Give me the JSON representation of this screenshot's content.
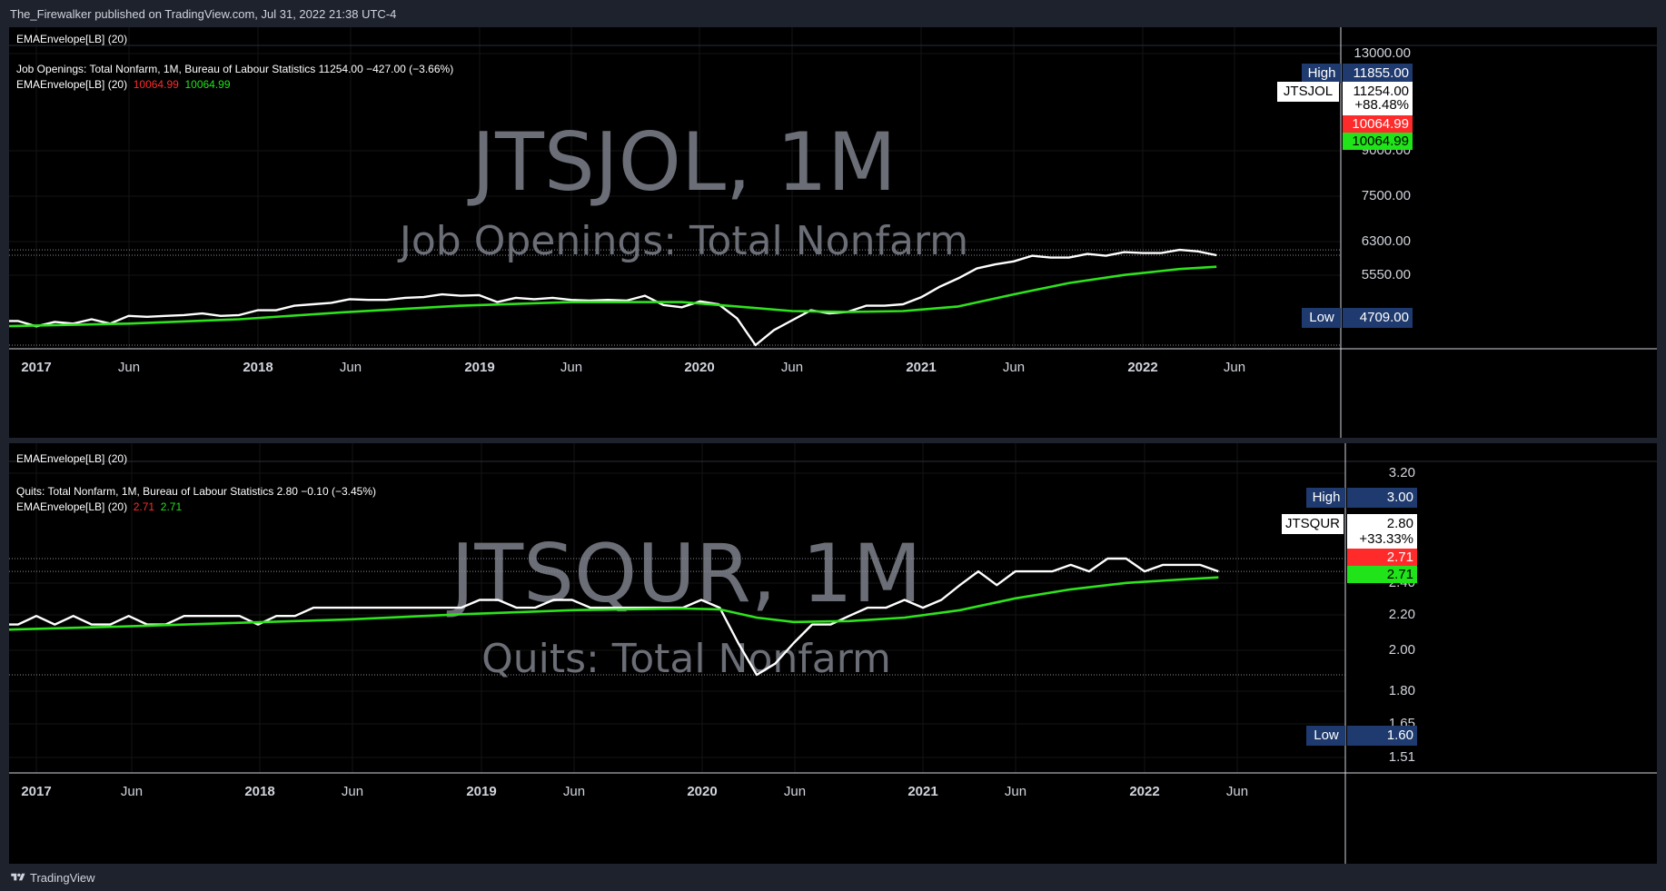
{
  "header": {
    "publish_text": "The_Firewalker published on TradingView.com, Jul 31, 2022 21:38 UTC-4"
  },
  "footer": {
    "brand": "TradingView"
  },
  "colors": {
    "price": "#ffffff",
    "ema": "#2ee21c",
    "upper": "#ff2b2b",
    "lower": "#21e319",
    "tag_bg": "#1e3a6e",
    "watermark": "#6b6e76",
    "grid": "#1a1a1a"
  },
  "panels": [
    {
      "indicator_title": "EMAEnvelope[LB] (20)",
      "series_line": "Job Openings: Total Nonfarm, 1M, Bureau of Labour Statistics  11254.00  −427.00 (−3.66%)",
      "ema_label": "EMAEnvelope[LB] (20)",
      "ema_upper_value": "10064.99",
      "ema_lower_value": "10064.99",
      "watermark_symbol": "JTSJOL, 1M",
      "watermark_name": "Job Openings: Total Nonfarm",
      "symbol_tag": "JTSJOL",
      "last_value": "11254.00",
      "last_change": "+88.48%",
      "upper_tag": "10064.99",
      "lower_tag": "10064.99",
      "high_label": "High",
      "high_value": "11855.00",
      "low_label": "Low",
      "low_value": "4709.00",
      "y_ticks": [
        "13000.00",
        "7500.00",
        "6300.00",
        "5550.00"
      ],
      "hidden_tick": "9000.00",
      "x_ticks": [
        "2017",
        "Jun",
        "2018",
        "Jun",
        "2019",
        "Jun",
        "2020",
        "Jun",
        "2021",
        "Jun",
        "2022",
        "Jun"
      ]
    },
    {
      "indicator_title": "EMAEnvelope[LB] (20)",
      "series_line": "Quits: Total Nonfarm, 1M, Bureau of Labour Statistics  2.80  −0.10 (−3.45%)",
      "ema_label": "EMAEnvelope[LB] (20)",
      "ema_upper_value": "2.71",
      "ema_lower_value": "2.71",
      "watermark_symbol": "JTSQUR, 1M",
      "watermark_name": "Quits: Total Nonfarm",
      "symbol_tag": "JTSQUR",
      "last_value": "2.80",
      "last_change": "+33.33%",
      "upper_tag": "2.71",
      "lower_tag": "2.71",
      "high_label": "High",
      "high_value": "3.00",
      "low_label": "Low",
      "low_value": "1.60",
      "y_ticks": [
        "3.20",
        "2.20",
        "2.00",
        "1.80",
        "1.65",
        "1.51"
      ],
      "hidden_tick": "2.40",
      "x_ticks": [
        "2017",
        "Jun",
        "2018",
        "Jun",
        "2019",
        "Jun",
        "2020",
        "Jun",
        "2021",
        "Jun",
        "2022",
        "Jun"
      ]
    }
  ],
  "chart_data": [
    {
      "type": "line",
      "title": "Job Openings: Total Nonfarm",
      "y_scale": "log",
      "ylim": [
        4400,
        13000
      ],
      "x_range": [
        "2016-11",
        "2022-12"
      ],
      "series": [
        {
          "name": "JTSJOL",
          "x": [
            "2016-11",
            "2016-12",
            "2017-01",
            "2017-02",
            "2017-03",
            "2017-04",
            "2017-05",
            "2017-06",
            "2017-07",
            "2017-08",
            "2017-09",
            "2017-10",
            "2017-11",
            "2017-12",
            "2018-01",
            "2018-02",
            "2018-03",
            "2018-04",
            "2018-05",
            "2018-06",
            "2018-07",
            "2018-08",
            "2018-09",
            "2018-10",
            "2018-11",
            "2018-12",
            "2019-01",
            "2019-02",
            "2019-03",
            "2019-04",
            "2019-05",
            "2019-06",
            "2019-07",
            "2019-08",
            "2019-09",
            "2019-10",
            "2019-11",
            "2019-12",
            "2020-01",
            "2020-02",
            "2020-03",
            "2020-04",
            "2020-05",
            "2020-06",
            "2020-07",
            "2020-08",
            "2020-09",
            "2020-10",
            "2020-11",
            "2020-12",
            "2021-01",
            "2021-02",
            "2021-03",
            "2021-04",
            "2021-05",
            "2021-06",
            "2021-07",
            "2021-08",
            "2021-09",
            "2021-10",
            "2021-11",
            "2021-12",
            "2022-01",
            "2022-02",
            "2022-03",
            "2022-04",
            "2022-05"
          ],
          "values": [
            5950,
            5950,
            5650,
            5900,
            5800,
            6050,
            5800,
            6250,
            6200,
            6250,
            6300,
            6400,
            6250,
            6300,
            6600,
            6600,
            6900,
            7000,
            7100,
            7350,
            7300,
            7300,
            7450,
            7500,
            7700,
            7600,
            7650,
            7150,
            7450,
            7350,
            7450,
            7300,
            7250,
            7300,
            7250,
            7600,
            6950,
            6800,
            7200,
            7000,
            6100,
            4709,
            5450,
            6000,
            6600,
            6400,
            6500,
            6900,
            6900,
            7000,
            7500,
            8300,
            9000,
            9900,
            10300,
            10600,
            11200,
            11000,
            11000,
            11400,
            11200,
            11600,
            11500,
            11500,
            11855,
            11681,
            11254
          ]
        },
        {
          "name": "EMAEnvelope",
          "x": [
            "2016-11",
            "2017-06",
            "2017-12",
            "2018-06",
            "2018-12",
            "2019-06",
            "2019-12",
            "2020-03",
            "2020-06",
            "2020-09",
            "2020-12",
            "2021-03",
            "2021-06",
            "2021-09",
            "2021-12",
            "2022-03",
            "2022-05"
          ],
          "values": [
            5650,
            5800,
            6050,
            6500,
            6900,
            7150,
            7150,
            6850,
            6550,
            6500,
            6550,
            6850,
            7700,
            8600,
            9300,
            9850,
            10064.99
          ]
        }
      ]
    },
    {
      "type": "line",
      "title": "Quits: Total Nonfarm",
      "y_scale": "log",
      "ylim": [
        1.51,
        3.2
      ],
      "x_range": [
        "2016-11",
        "2022-12"
      ],
      "series": [
        {
          "name": "JTSQUR",
          "x": [
            "2016-11",
            "2016-12",
            "2017-01",
            "2017-02",
            "2017-03",
            "2017-04",
            "2017-05",
            "2017-06",
            "2017-07",
            "2017-08",
            "2017-09",
            "2017-10",
            "2017-11",
            "2017-12",
            "2018-01",
            "2018-02",
            "2018-03",
            "2018-04",
            "2018-05",
            "2018-06",
            "2018-07",
            "2018-08",
            "2018-09",
            "2018-10",
            "2018-11",
            "2018-12",
            "2019-01",
            "2019-02",
            "2019-03",
            "2019-04",
            "2019-05",
            "2019-06",
            "2019-07",
            "2019-08",
            "2019-09",
            "2019-10",
            "2019-11",
            "2019-12",
            "2020-01",
            "2020-02",
            "2020-03",
            "2020-04",
            "2020-05",
            "2020-06",
            "2020-07",
            "2020-08",
            "2020-09",
            "2020-10",
            "2020-11",
            "2020-12",
            "2021-01",
            "2021-02",
            "2021-03",
            "2021-04",
            "2021-05",
            "2021-06",
            "2021-07",
            "2021-08",
            "2021-09",
            "2021-10",
            "2021-11",
            "2021-12",
            "2022-01",
            "2022-02",
            "2022-03",
            "2022-04",
            "2022-05"
          ],
          "values": [
            2.1,
            2.1,
            2.2,
            2.1,
            2.2,
            2.1,
            2.1,
            2.2,
            2.1,
            2.1,
            2.2,
            2.2,
            2.2,
            2.2,
            2.1,
            2.2,
            2.2,
            2.3,
            2.3,
            2.3,
            2.3,
            2.3,
            2.3,
            2.3,
            2.3,
            2.3,
            2.4,
            2.4,
            2.3,
            2.3,
            2.4,
            2.4,
            2.3,
            2.3,
            2.3,
            2.3,
            2.3,
            2.3,
            2.4,
            2.3,
            1.9,
            1.6,
            1.7,
            1.9,
            2.1,
            2.1,
            2.2,
            2.3,
            2.3,
            2.4,
            2.3,
            2.4,
            2.6,
            2.8,
            2.6,
            2.8,
            2.8,
            2.8,
            2.9,
            2.8,
            3.0,
            3.0,
            2.8,
            2.9,
            2.9,
            2.9,
            2.8
          ]
        },
        {
          "name": "EMAEnvelope",
          "x": [
            "2016-11",
            "2017-06",
            "2017-12",
            "2018-06",
            "2018-12",
            "2019-06",
            "2019-12",
            "2020-02",
            "2020-04",
            "2020-06",
            "2020-09",
            "2020-12",
            "2021-03",
            "2021-06",
            "2021-09",
            "2021-12",
            "2022-03",
            "2022-05"
          ],
          "values": [
            2.04,
            2.08,
            2.12,
            2.16,
            2.22,
            2.27,
            2.29,
            2.28,
            2.18,
            2.13,
            2.14,
            2.18,
            2.27,
            2.42,
            2.54,
            2.63,
            2.68,
            2.71
          ]
        }
      ]
    }
  ]
}
